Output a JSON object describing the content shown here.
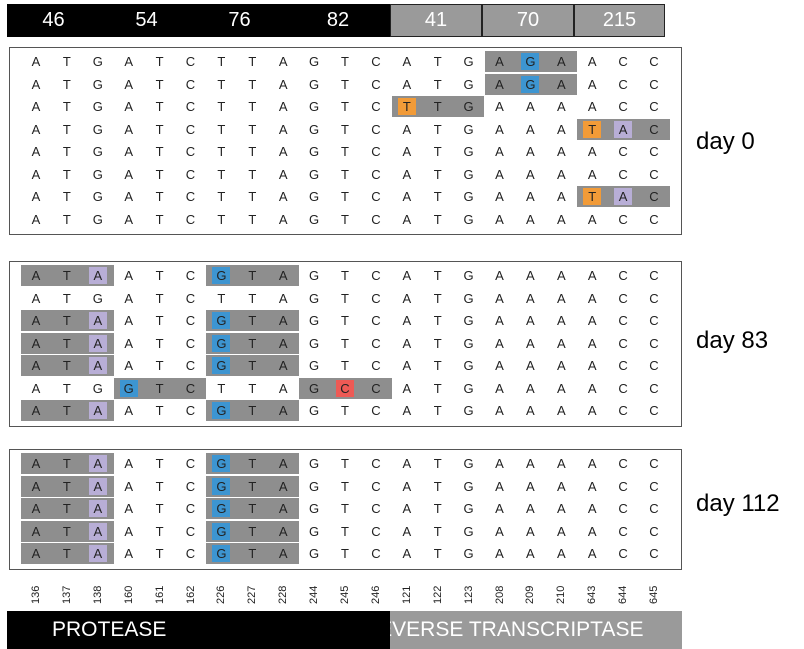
{
  "colors": {
    "gray_block": "#8e8e8e",
    "blue": "#3d95d1",
    "purple": "#b8aed6",
    "orange": "#f29b38",
    "red": "#ee5a55"
  },
  "codon_headers": [
    {
      "label": "46",
      "gene": "protease"
    },
    {
      "label": "54",
      "gene": "protease"
    },
    {
      "label": "76",
      "gene": "protease"
    },
    {
      "label": "82",
      "gene": "protease"
    },
    {
      "label": "41",
      "gene": "rt"
    },
    {
      "label": "70",
      "gene": "rt"
    },
    {
      "label": "215",
      "gene": "rt"
    }
  ],
  "positions": [
    "136",
    "137",
    "138",
    "160",
    "161",
    "162",
    "226",
    "227",
    "228",
    "244",
    "245",
    "246",
    "121",
    "122",
    "123",
    "208",
    "209",
    "210",
    "643",
    "644",
    "645"
  ],
  "genes": {
    "protease": "PROTEASE",
    "rt": "REVERSE TRANSCRIPTASE"
  },
  "panels": [
    {
      "label": "day 0",
      "rows": [
        {
          "seq": "ATGATCTTAGTCATGAGAACC",
          "gray": [
            [
              15,
              17
            ]
          ],
          "marks": {
            "16": "blue"
          }
        },
        {
          "seq": "ATGATCTTAGTCATGAGAACC",
          "gray": [
            [
              15,
              17
            ]
          ],
          "marks": {
            "16": "blue"
          }
        },
        {
          "seq": "ATGATCTTAGTCTTGAAAACC",
          "gray": [
            [
              12,
              14
            ]
          ],
          "marks": {
            "12": "orange"
          }
        },
        {
          "seq": "ATGATCTTAGTCATGAAATAC",
          "gray": [
            [
              18,
              20
            ]
          ],
          "marks": {
            "18": "orange",
            "19": "purple"
          }
        },
        {
          "seq": "ATGATCTTAGTCATGAAAACC",
          "gray": [],
          "marks": {}
        },
        {
          "seq": "ATGATCTTAGTCATGAAAACC",
          "gray": [],
          "marks": {}
        },
        {
          "seq": "ATGATCTTAGTCATGAAATAC",
          "gray": [
            [
              18,
              20
            ]
          ],
          "marks": {
            "18": "orange",
            "19": "purple"
          }
        },
        {
          "seq": "ATGATCTTAGTCATGAAAACC",
          "gray": [],
          "marks": {}
        }
      ]
    },
    {
      "label": "day 83",
      "rows": [
        {
          "seq": "ATAATCGTAGTCATGAAAACC",
          "gray": [
            [
              0,
              2
            ],
            [
              6,
              8
            ]
          ],
          "marks": {
            "2": "purple",
            "6": "blue"
          }
        },
        {
          "seq": "ATGATCTTAGTCATGAAAACC",
          "gray": [],
          "marks": {}
        },
        {
          "seq": "ATAATCGTAGTCATGAAAACC",
          "gray": [
            [
              0,
              2
            ],
            [
              6,
              8
            ]
          ],
          "marks": {
            "2": "purple",
            "6": "blue"
          }
        },
        {
          "seq": "ATAATCGTAGTCATGAAAACC",
          "gray": [
            [
              0,
              2
            ],
            [
              6,
              8
            ]
          ],
          "marks": {
            "2": "purple",
            "6": "blue"
          }
        },
        {
          "seq": "ATAATCGTAGTCATGAAAACC",
          "gray": [
            [
              0,
              2
            ],
            [
              6,
              8
            ]
          ],
          "marks": {
            "2": "purple",
            "6": "blue"
          }
        },
        {
          "seq": "ATGGTCTTAGCCATGAAAACC",
          "gray": [
            [
              3,
              5
            ],
            [
              9,
              11
            ]
          ],
          "marks": {
            "3": "blue",
            "10": "red"
          }
        },
        {
          "seq": "ATAATCGTAGTCATGAAAACC",
          "gray": [
            [
              0,
              2
            ],
            [
              6,
              8
            ]
          ],
          "marks": {
            "2": "purple",
            "6": "blue"
          }
        }
      ]
    },
    {
      "label": "day 112",
      "rows": [
        {
          "seq": "ATAATCGTAGTCATGAAAACC",
          "gray": [
            [
              0,
              2
            ],
            [
              6,
              8
            ]
          ],
          "marks": {
            "2": "purple",
            "6": "blue"
          }
        },
        {
          "seq": "ATAATCGTAGTCATGAAAACC",
          "gray": [
            [
              0,
              2
            ],
            [
              6,
              8
            ]
          ],
          "marks": {
            "2": "purple",
            "6": "blue"
          }
        },
        {
          "seq": "ATAATCGTAGTCATGAAAACC",
          "gray": [
            [
              0,
              2
            ],
            [
              6,
              8
            ]
          ],
          "marks": {
            "2": "purple",
            "6": "blue"
          }
        },
        {
          "seq": "ATAATCGTAGTCATGAAAACC",
          "gray": [
            [
              0,
              2
            ],
            [
              6,
              8
            ]
          ],
          "marks": {
            "2": "purple",
            "6": "blue"
          }
        },
        {
          "seq": "ATAATCGTAGTCATGAAAACC",
          "gray": [
            [
              0,
              2
            ],
            [
              6,
              8
            ]
          ],
          "marks": {
            "2": "purple",
            "6": "blue"
          }
        }
      ]
    }
  ]
}
